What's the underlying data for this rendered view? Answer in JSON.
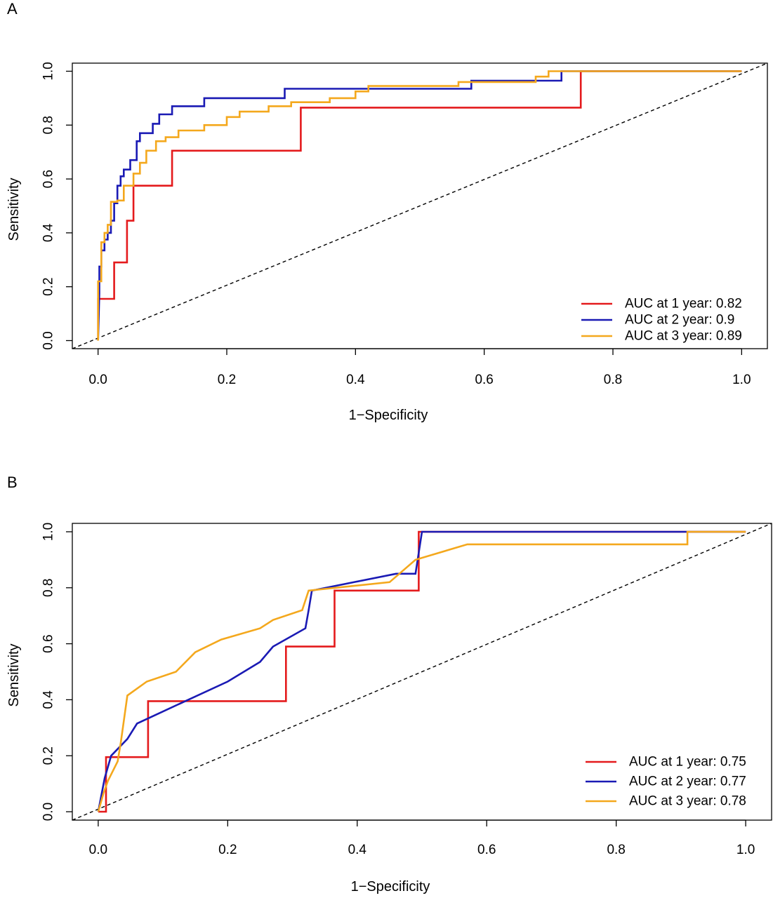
{
  "chart_data": [
    {
      "panel_label": "A",
      "type": "line",
      "xlabel": "1−Specificity",
      "ylabel": "Sensitivity",
      "xlim": [
        -0.04,
        1.04
      ],
      "ylim": [
        -0.03,
        1.03
      ],
      "xticks": [
        "0.0",
        "0.2",
        "0.4",
        "0.6",
        "0.8",
        "1.0"
      ],
      "yticks": [
        "0.0",
        "0.2",
        "0.4",
        "0.6",
        "0.8",
        "1.0"
      ],
      "legend_position": "bottom-right",
      "reference_line": "diagonal dashed",
      "series": [
        {
          "name": "AUC at 1 year: 0.82",
          "color": "#e41a1c",
          "x": [
            0.0,
            0.0,
            0.0,
            0.025,
            0.025,
            0.045,
            0.045,
            0.055,
            0.055,
            0.115,
            0.115,
            0.315,
            0.315,
            0.75,
            0.75,
            1.0
          ],
          "y": [
            0.0,
            0.155,
            0.155,
            0.155,
            0.29,
            0.29,
            0.445,
            0.445,
            0.575,
            0.575,
            0.705,
            0.705,
            0.865,
            0.865,
            1.0,
            1.0
          ]
        },
        {
          "name": "AUC at 2 year: 0.9",
          "color": "#1a1ab4",
          "x": [
            0.0,
            0.002,
            0.002,
            0.005,
            0.005,
            0.01,
            0.01,
            0.015,
            0.015,
            0.02,
            0.02,
            0.025,
            0.025,
            0.03,
            0.03,
            0.035,
            0.035,
            0.04,
            0.04,
            0.05,
            0.05,
            0.06,
            0.06,
            0.065,
            0.065,
            0.085,
            0.085,
            0.095,
            0.095,
            0.115,
            0.115,
            0.165,
            0.165,
            0.29,
            0.29,
            0.58,
            0.58,
            0.72,
            0.72,
            0.72,
            1.0
          ],
          "y": [
            0.0,
            0.175,
            0.275,
            0.275,
            0.335,
            0.335,
            0.375,
            0.375,
            0.4,
            0.4,
            0.445,
            0.445,
            0.51,
            0.51,
            0.575,
            0.575,
            0.61,
            0.61,
            0.635,
            0.635,
            0.67,
            0.67,
            0.74,
            0.74,
            0.77,
            0.77,
            0.805,
            0.805,
            0.84,
            0.84,
            0.87,
            0.87,
            0.9,
            0.9,
            0.935,
            0.935,
            0.965,
            0.965,
            0.99,
            1.0,
            1.0
          ]
        },
        {
          "name": "AUC at 3 year: 0.89",
          "color": "#f4a81d",
          "x": [
            0.0,
            0.0,
            0.005,
            0.005,
            0.01,
            0.01,
            0.015,
            0.015,
            0.02,
            0.02,
            0.03,
            0.03,
            0.04,
            0.04,
            0.055,
            0.055,
            0.065,
            0.065,
            0.075,
            0.075,
            0.09,
            0.09,
            0.105,
            0.105,
            0.125,
            0.125,
            0.165,
            0.165,
            0.2,
            0.2,
            0.22,
            0.22,
            0.265,
            0.265,
            0.3,
            0.3,
            0.36,
            0.36,
            0.4,
            0.4,
            0.42,
            0.42,
            0.56,
            0.56,
            0.68,
            0.68,
            0.7,
            0.7,
            1.0
          ],
          "y": [
            0.0,
            0.22,
            0.22,
            0.365,
            0.365,
            0.4,
            0.4,
            0.43,
            0.43,
            0.515,
            0.515,
            0.52,
            0.52,
            0.575,
            0.575,
            0.62,
            0.62,
            0.66,
            0.66,
            0.705,
            0.705,
            0.74,
            0.74,
            0.755,
            0.755,
            0.78,
            0.78,
            0.8,
            0.8,
            0.83,
            0.83,
            0.85,
            0.85,
            0.87,
            0.87,
            0.885,
            0.885,
            0.9,
            0.9,
            0.925,
            0.925,
            0.945,
            0.945,
            0.96,
            0.96,
            0.98,
            0.98,
            1.0,
            1.0
          ]
        }
      ]
    },
    {
      "panel_label": "B",
      "type": "line",
      "xlabel": "1−Specificity",
      "ylabel": "Sensitivity",
      "xlim": [
        -0.04,
        1.04
      ],
      "ylim": [
        -0.03,
        1.03
      ],
      "xticks": [
        "0.0",
        "0.2",
        "0.4",
        "0.6",
        "0.8",
        "1.0"
      ],
      "yticks": [
        "0.0",
        "0.2",
        "0.4",
        "0.6",
        "0.8",
        "1.0"
      ],
      "legend_position": "bottom-right",
      "reference_line": "diagonal dashed",
      "series": [
        {
          "name": "AUC at 1 year: 0.75",
          "color": "#e41a1c",
          "x": [
            0.0,
            0.012,
            0.012,
            0.012,
            0.077,
            0.077,
            0.29,
            0.29,
            0.365,
            0.365,
            0.495,
            0.495,
            1.0
          ],
          "y": [
            0.0,
            0.0,
            0.195,
            0.195,
            0.195,
            0.395,
            0.395,
            0.59,
            0.59,
            0.79,
            0.79,
            1.0,
            1.0
          ]
        },
        {
          "name": "AUC at 2 year: 0.77",
          "color": "#1a1ab4",
          "x": [
            0.0,
            0.01,
            0.01,
            0.02,
            0.02,
            0.045,
            0.045,
            0.06,
            0.06,
            0.125,
            0.125,
            0.2,
            0.2,
            0.25,
            0.25,
            0.27,
            0.27,
            0.32,
            0.32,
            0.325,
            0.325,
            0.33,
            0.33,
            0.46,
            0.46,
            0.49,
            0.49,
            0.5,
            0.5,
            1.0
          ],
          "y": [
            0.0,
            0.12,
            0.12,
            0.2,
            0.2,
            0.26,
            0.26,
            0.315,
            0.315,
            0.385,
            0.385,
            0.465,
            0.465,
            0.535,
            0.535,
            0.59,
            0.59,
            0.655,
            0.655,
            0.72,
            0.72,
            0.79,
            0.79,
            0.85,
            0.85,
            0.85,
            0.85,
            1.0,
            1.0,
            1.0
          ]
        },
        {
          "name": "AUC at 3 year: 0.78",
          "color": "#f4a81d",
          "x": [
            0.0,
            0.008,
            0.008,
            0.015,
            0.015,
            0.03,
            0.03,
            0.035,
            0.035,
            0.045,
            0.045,
            0.075,
            0.075,
            0.12,
            0.12,
            0.15,
            0.15,
            0.19,
            0.19,
            0.25,
            0.25,
            0.27,
            0.27,
            0.315,
            0.315,
            0.325,
            0.325,
            0.45,
            0.45,
            0.49,
            0.49,
            0.57,
            0.57,
            0.91,
            0.91,
            1.0
          ],
          "y": [
            0.0,
            0.065,
            0.065,
            0.11,
            0.11,
            0.18,
            0.18,
            0.25,
            0.25,
            0.415,
            0.415,
            0.465,
            0.465,
            0.5,
            0.5,
            0.57,
            0.57,
            0.615,
            0.615,
            0.655,
            0.655,
            0.685,
            0.685,
            0.72,
            0.72,
            0.79,
            0.79,
            0.82,
            0.82,
            0.9,
            0.9,
            0.955,
            0.955,
            0.955,
            1.0,
            1.0
          ]
        }
      ]
    }
  ]
}
